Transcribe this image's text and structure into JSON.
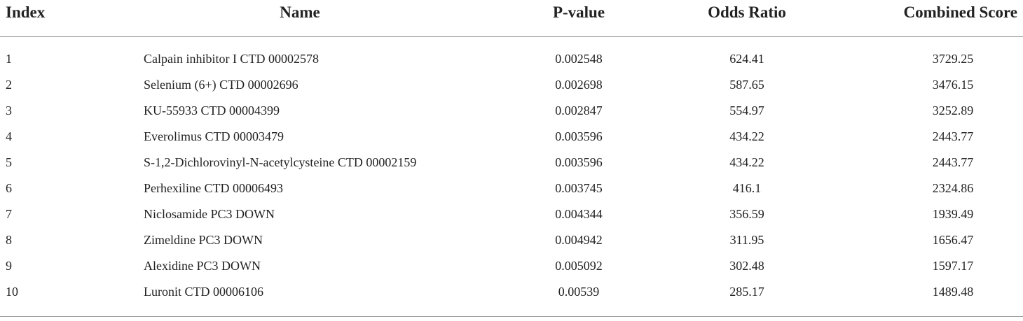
{
  "table": {
    "header": [
      "Index",
      "Name",
      "P-value",
      "Odds Ratio",
      "Combined Score"
    ],
    "rows": [
      [
        "1",
        "Calpain inhibitor I CTD 00002578",
        "0.002548",
        "624.41",
        "3729.25"
      ],
      [
        "2",
        "Selenium (6+) CTD 00002696",
        "0.002698",
        "587.65",
        "3476.15"
      ],
      [
        "3",
        "KU-55933 CTD 00004399",
        "0.002847",
        "554.97",
        "3252.89"
      ],
      [
        "4",
        "Everolimus CTD 00003479",
        "0.003596",
        "434.22",
        "2443.77"
      ],
      [
        "5",
        "S-1,2-Dichlorovinyl-N-acetylcysteine CTD 00002159",
        "0.003596",
        "434.22",
        "2443.77"
      ],
      [
        "6",
        "Perhexiline CTD 00006493",
        "0.003745",
        "416.1",
        "2324.86"
      ],
      [
        "7",
        "Niclosamide PC3 DOWN",
        "0.004344",
        "356.59",
        "1939.49"
      ],
      [
        "8",
        "Zimeldine PC3 DOWN",
        "0.004942",
        "311.95",
        "1656.47"
      ],
      [
        "9",
        "Alexidine PC3 DOWN",
        "0.005092",
        "302.48",
        "1597.17"
      ],
      [
        "10",
        "Luronit CTD 00006106",
        "0.00539",
        "285.17",
        "1489.48"
      ]
    ]
  }
}
